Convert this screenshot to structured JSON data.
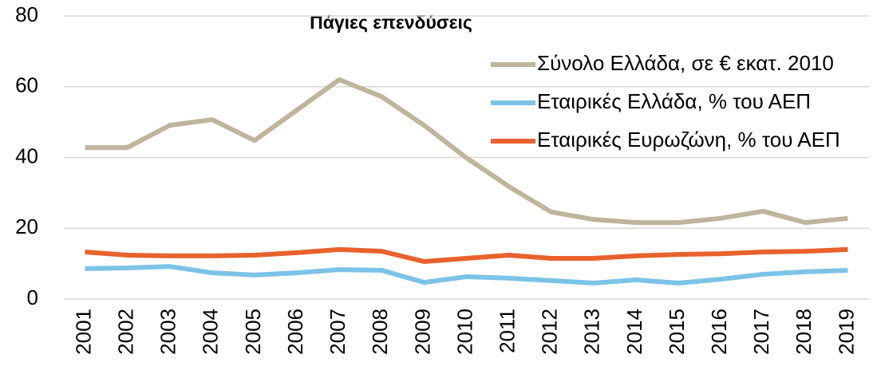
{
  "chart_data": {
    "type": "line",
    "title": "Πάγιες επενδύσεις",
    "categories": [
      "2001",
      "2002",
      "2003",
      "2004",
      "2005",
      "2006",
      "2007",
      "2008",
      "2009",
      "2010",
      "2011",
      "2012",
      "2013",
      "2014",
      "2015",
      "2016",
      "2017",
      "2018",
      "2019"
    ],
    "series": [
      {
        "name": "Σύνολο Ελλάδα, σε € εκατ. 2010",
        "color": "#bfb49c",
        "values": [
          42.8,
          42.8,
          49.1,
          50.7,
          44.8,
          53.4,
          62,
          57.2,
          49.1,
          39.9,
          31.8,
          24.6,
          22.5,
          21.6,
          21.6,
          22.8,
          24.8,
          21.6,
          22.8
        ]
      },
      {
        "name": "Εταιρικές Ελλάδα, % του ΑΕΠ",
        "color": "#7cc3e8",
        "values": [
          8.6,
          8.8,
          9.2,
          7.4,
          6.8,
          7.4,
          8.3,
          8.1,
          4.7,
          6.3,
          5.9,
          5.2,
          4.5,
          5.4,
          4.5,
          5.6,
          7.0,
          7.7,
          8.1
        ]
      },
      {
        "name": "Εταιρικές Ευρωζώνη, % του ΑΕΠ",
        "color": "#e8622e",
        "values": [
          13.3,
          12.4,
          12.2,
          12.2,
          12.4,
          13.1,
          14.0,
          13.5,
          10.6,
          11.5,
          12.4,
          11.5,
          11.5,
          12.2,
          12.6,
          12.8,
          13.3,
          13.5,
          14.0
        ]
      }
    ],
    "ylim": [
      0,
      80
    ],
    "yticks": [
      0,
      20,
      40,
      60,
      80
    ],
    "grid": true,
    "legend": "upper right"
  }
}
